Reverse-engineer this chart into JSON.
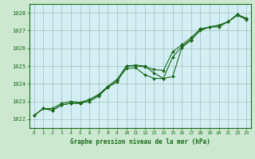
{
  "title": "Graphe pression niveau de la mer (hPa)",
  "background_color": "#cce8d0",
  "plot_bg_color": "#d4eef5",
  "grid_color": "#9cc4b4",
  "line_color": "#1a6b1a",
  "marker_color": "#1a6b1a",
  "xlim": [
    -0.5,
    23.5
  ],
  "ylim": [
    1021.5,
    1028.5
  ],
  "yticks": [
    1022,
    1023,
    1024,
    1025,
    1026,
    1027,
    1028
  ],
  "xticks": [
    0,
    1,
    2,
    3,
    4,
    5,
    6,
    7,
    8,
    9,
    10,
    11,
    12,
    13,
    14,
    15,
    16,
    17,
    18,
    19,
    20,
    21,
    22,
    23
  ],
  "series1": [
    1022.2,
    1022.6,
    1022.5,
    1022.8,
    1022.9,
    1022.9,
    1023.0,
    1023.3,
    1023.8,
    1024.1,
    1025.0,
    1025.05,
    1025.0,
    1024.6,
    1024.3,
    1025.5,
    1026.1,
    1026.5,
    1027.0,
    1027.2,
    1027.2,
    1027.5,
    1027.85,
    1027.65
  ],
  "series2": [
    1022.2,
    1022.6,
    1022.5,
    1022.8,
    1022.9,
    1022.9,
    1023.1,
    1023.35,
    1023.85,
    1024.2,
    1024.85,
    1024.9,
    1024.5,
    1024.3,
    1024.3,
    1024.4,
    1026.05,
    1026.45,
    1027.05,
    1027.2,
    1027.3,
    1027.5,
    1027.9,
    1027.6
  ],
  "series3": [
    1022.2,
    1022.6,
    1022.6,
    1022.9,
    1023.0,
    1022.95,
    1023.1,
    1023.4,
    1023.85,
    1024.25,
    1025.0,
    1025.0,
    1024.95,
    1024.8,
    1024.75,
    1025.8,
    1026.2,
    1026.6,
    1027.1,
    1027.2,
    1027.3,
    1027.5,
    1027.9,
    1027.7
  ]
}
